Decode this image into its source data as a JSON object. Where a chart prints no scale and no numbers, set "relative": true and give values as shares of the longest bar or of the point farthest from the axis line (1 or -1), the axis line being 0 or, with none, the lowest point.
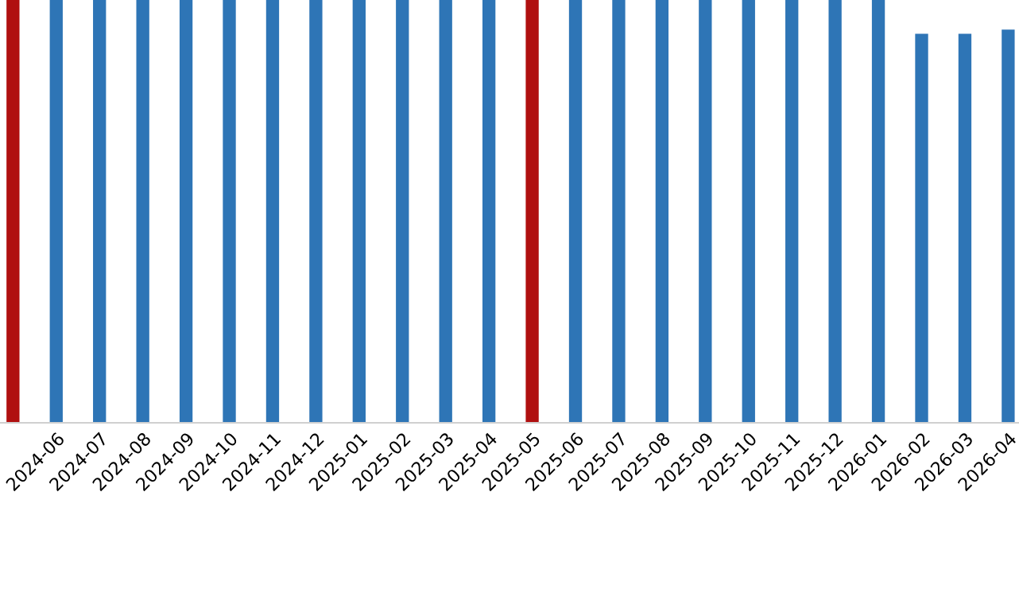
{
  "chart_data": {
    "type": "bar",
    "relative": true,
    "categories": [
      null,
      "2024-06",
      "2024-07",
      "2024-08",
      "2024-09",
      "2024-10",
      "2024-11",
      "2024-12",
      "2025-01",
      "2025-02",
      "2025-03",
      "2025-04",
      "2025-05",
      "2025-06",
      "2025-07",
      "2025-08",
      "2025-09",
      "2025-10",
      "2025-11",
      "2025-12",
      "2026-01",
      "2026-02",
      "2026-03",
      "2026-04"
    ],
    "values": [
      1,
      1,
      1,
      1,
      1,
      1,
      1,
      1,
      1,
      1,
      1,
      1,
      1,
      1,
      1,
      1,
      1,
      1,
      1,
      1,
      1,
      0.92,
      0.92,
      0.93
    ],
    "colors": [
      "#b01010",
      "#2e75b6",
      "#2e75b6",
      "#2e75b6",
      "#2e75b6",
      "#2e75b6",
      "#2e75b6",
      "#2e75b6",
      "#2e75b6",
      "#2e75b6",
      "#2e75b6",
      "#2e75b6",
      "#b01010",
      "#2e75b6",
      "#2e75b6",
      "#2e75b6",
      "#2e75b6",
      "#2e75b6",
      "#2e75b6",
      "#2e75b6",
      "#2e75b6",
      "#2e75b6",
      "#2e75b6",
      "#2e75b6"
    ]
  }
}
